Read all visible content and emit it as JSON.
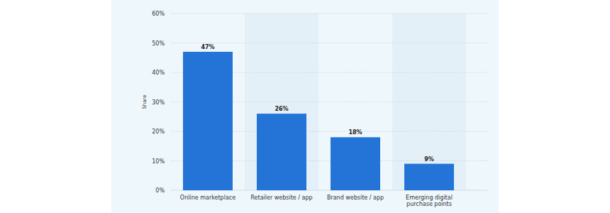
{
  "chart_data": {
    "type": "bar",
    "y_label": "Share",
    "categories": [
      "Online marketplace",
      "Retailer website / app",
      "Brand website / app",
      "Emerging digital purchase points"
    ],
    "values": [
      47,
      26,
      18,
      9
    ],
    "value_labels": [
      "47%",
      "26%",
      "18%",
      "9%"
    ],
    "color": "#2474d8",
    "ylim": [
      0,
      60
    ],
    "yticks": [
      {
        "value": 0,
        "label": "0%"
      },
      {
        "value": 10,
        "label": "10%"
      },
      {
        "value": 20,
        "label": "20%"
      },
      {
        "value": 30,
        "label": "30%"
      },
      {
        "value": 40,
        "label": "40%"
      },
      {
        "value": 50,
        "label": "50%"
      },
      {
        "value": 60,
        "label": "60%"
      }
    ],
    "grid": true,
    "data_labels": true
  }
}
